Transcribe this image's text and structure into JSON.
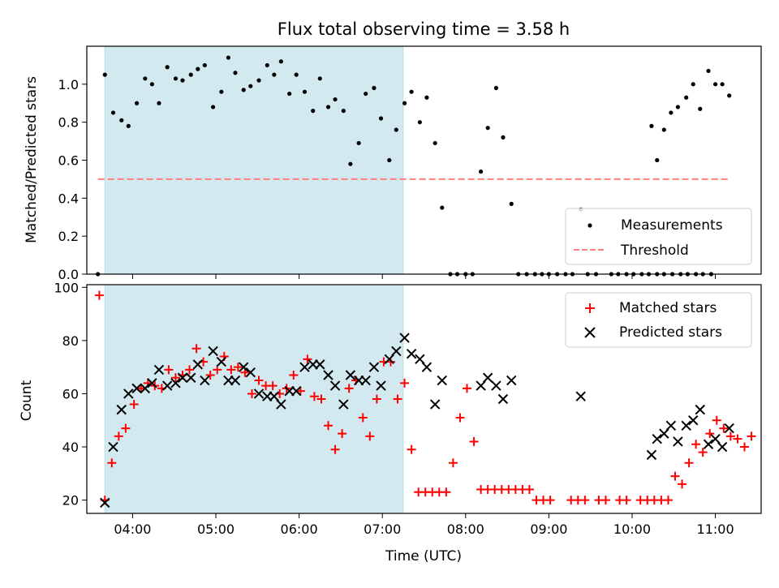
{
  "chart_data": [
    {
      "type": "scatter",
      "title": "Flux total observing time = 3.58 h",
      "xlabel": "",
      "ylabel": "Matched/Predicted stars",
      "xlim": [
        "03:27",
        "11:33"
      ],
      "ylim": [
        0,
        1.2
      ],
      "yticks": [
        "0.0",
        "0.2",
        "0.4",
        "0.6",
        "0.8",
        "1.0"
      ],
      "grid": false,
      "legend": "lower-right",
      "shaded_interval": [
        "03:40",
        "07:15"
      ],
      "series": [
        {
          "name": "Measurements",
          "kind": "scatter",
          "color": "#000000",
          "points": [
            [
              "03:35",
              0.0
            ],
            [
              "03:40",
              1.05
            ],
            [
              "03:46",
              0.85
            ],
            [
              "03:52",
              0.81
            ],
            [
              "03:57",
              0.78
            ],
            [
              "04:03",
              0.9
            ],
            [
              "04:09",
              1.03
            ],
            [
              "04:14",
              1.0
            ],
            [
              "04:19",
              0.9
            ],
            [
              "04:25",
              1.09
            ],
            [
              "04:31",
              1.03
            ],
            [
              "04:36",
              1.02
            ],
            [
              "04:42",
              1.05
            ],
            [
              "04:47",
              1.08
            ],
            [
              "04:52",
              1.1
            ],
            [
              "04:58",
              0.88
            ],
            [
              "05:04",
              0.96
            ],
            [
              "05:09",
              1.14
            ],
            [
              "05:14",
              1.06
            ],
            [
              "05:20",
              0.97
            ],
            [
              "05:25",
              0.99
            ],
            [
              "05:31",
              1.02
            ],
            [
              "05:37",
              1.1
            ],
            [
              "05:42",
              1.05
            ],
            [
              "05:47",
              1.12
            ],
            [
              "05:53",
              0.95
            ],
            [
              "05:58",
              1.05
            ],
            [
              "06:04",
              0.96
            ],
            [
              "06:10",
              0.86
            ],
            [
              "06:15",
              1.03
            ],
            [
              "06:21",
              0.88
            ],
            [
              "06:26",
              0.92
            ],
            [
              "06:32",
              0.86
            ],
            [
              "06:37",
              0.58
            ],
            [
              "06:43",
              0.69
            ],
            [
              "06:48",
              0.95
            ],
            [
              "06:54",
              0.98
            ],
            [
              "06:59",
              0.82
            ],
            [
              "07:05",
              0.6
            ],
            [
              "07:10",
              0.76
            ],
            [
              "07:16",
              0.9
            ],
            [
              "07:21",
              0.96
            ],
            [
              "07:27",
              0.8
            ],
            [
              "07:32",
              0.93
            ],
            [
              "07:38",
              0.69
            ],
            [
              "07:43",
              0.35
            ],
            [
              "07:49",
              0.0
            ],
            [
              "07:54",
              0.0
            ],
            [
              "08:00",
              0.0
            ],
            [
              "08:05",
              0.0
            ],
            [
              "08:11",
              0.54
            ],
            [
              "08:16",
              0.77
            ],
            [
              "08:22",
              0.98
            ],
            [
              "08:27",
              0.72
            ],
            [
              "08:33",
              0.37
            ],
            [
              "08:38",
              0.0
            ],
            [
              "08:44",
              0.0
            ],
            [
              "08:50",
              0.0
            ],
            [
              "08:55",
              0.0
            ],
            [
              "09:00",
              0.0
            ],
            [
              "09:06",
              0.0
            ],
            [
              "09:12",
              0.0
            ],
            [
              "09:17",
              0.0
            ],
            [
              "09:23",
              0.34
            ],
            [
              "09:28",
              0.0
            ],
            [
              "09:34",
              0.0
            ],
            [
              "09:45",
              0.0
            ],
            [
              "09:50",
              0.0
            ],
            [
              "09:56",
              0.0
            ],
            [
              "10:01",
              0.0
            ],
            [
              "10:07",
              0.0
            ],
            [
              "10:12",
              0.0
            ],
            [
              "10:18",
              0.0
            ],
            [
              "10:23",
              0.0
            ],
            [
              "10:29",
              0.0
            ],
            [
              "10:35",
              0.0
            ],
            [
              "10:40",
              0.0
            ],
            [
              "10:46",
              0.0
            ],
            [
              "10:51",
              0.0
            ],
            [
              "10:57",
              0.0
            ],
            [
              "10:14",
              0.78
            ],
            [
              "10:18",
              0.6
            ],
            [
              "10:23",
              0.76
            ],
            [
              "10:28",
              0.85
            ],
            [
              "10:33",
              0.88
            ],
            [
              "10:39",
              0.93
            ],
            [
              "10:44",
              1.0
            ],
            [
              "10:49",
              0.87
            ],
            [
              "10:55",
              1.07
            ],
            [
              "11:00",
              1.0
            ],
            [
              "11:05",
              1.0
            ],
            [
              "11:10",
              0.94
            ]
          ]
        },
        {
          "name": "Threshold",
          "kind": "line",
          "style": "dashed",
          "color": "#ff7f7f",
          "x": [
            "03:35",
            "11:10"
          ],
          "y": [
            0.5,
            0.5
          ]
        }
      ]
    },
    {
      "type": "scatter",
      "title": "",
      "xlabel": "Time (UTC)",
      "ylabel": "Count",
      "xlim": [
        "03:27",
        "11:33"
      ],
      "ylim": [
        15,
        101
      ],
      "yticks": [
        "20",
        "40",
        "60",
        "80",
        "100"
      ],
      "xticks": [
        "04:00",
        "05:00",
        "06:00",
        "07:00",
        "08:00",
        "09:00",
        "10:00",
        "11:00"
      ],
      "grid": false,
      "legend": "top-right",
      "shaded_interval": [
        "03:40",
        "07:15"
      ],
      "series": [
        {
          "name": "Matched stars",
          "kind": "scatter",
          "marker": "+",
          "color": "#ff0000",
          "points": [
            [
              "03:36",
              97
            ],
            [
              "03:40",
              20
            ],
            [
              "03:45",
              34
            ],
            [
              "03:50",
              44
            ],
            [
              "03:55",
              47
            ],
            [
              "04:01",
              56
            ],
            [
              "04:06",
              62
            ],
            [
              "04:11",
              64
            ],
            [
              "04:16",
              63
            ],
            [
              "04:21",
              62
            ],
            [
              "04:26",
              69
            ],
            [
              "04:31",
              66
            ],
            [
              "04:36",
              67
            ],
            [
              "04:41",
              69
            ],
            [
              "04:46",
              77
            ],
            [
              "04:51",
              72
            ],
            [
              "04:56",
              67
            ],
            [
              "05:01",
              69
            ],
            [
              "05:06",
              74
            ],
            [
              "05:11",
              69
            ],
            [
              "05:16",
              70
            ],
            [
              "05:21",
              68
            ],
            [
              "05:26",
              60
            ],
            [
              "05:31",
              65
            ],
            [
              "05:36",
              63
            ],
            [
              "05:41",
              63
            ],
            [
              "05:46",
              60
            ],
            [
              "05:51",
              62
            ],
            [
              "05:56",
              67
            ],
            [
              "06:01",
              61
            ],
            [
              "06:06",
              73
            ],
            [
              "06:11",
              59
            ],
            [
              "06:16",
              58
            ],
            [
              "06:21",
              48
            ],
            [
              "06:26",
              39
            ],
            [
              "06:31",
              45
            ],
            [
              "06:36",
              62
            ],
            [
              "06:41",
              65
            ],
            [
              "06:46",
              51
            ],
            [
              "06:51",
              44
            ],
            [
              "06:56",
              58
            ],
            [
              "07:01",
              72
            ],
            [
              "07:06",
              72
            ],
            [
              "07:11",
              58
            ],
            [
              "07:16",
              64
            ],
            [
              "07:21",
              39
            ],
            [
              "07:26",
              23
            ],
            [
              "07:31",
              23
            ],
            [
              "07:36",
              23
            ],
            [
              "07:41",
              23
            ],
            [
              "07:46",
              23
            ],
            [
              "07:51",
              34
            ],
            [
              "07:56",
              51
            ],
            [
              "08:01",
              62
            ],
            [
              "08:06",
              42
            ],
            [
              "08:11",
              24
            ],
            [
              "08:16",
              24
            ],
            [
              "08:21",
              24
            ],
            [
              "08:26",
              24
            ],
            [
              "08:31",
              24
            ],
            [
              "08:36",
              24
            ],
            [
              "08:41",
              24
            ],
            [
              "08:46",
              24
            ],
            [
              "08:51",
              20
            ],
            [
              "08:56",
              20
            ],
            [
              "09:01",
              20
            ],
            [
              "09:16",
              20
            ],
            [
              "09:21",
              20
            ],
            [
              "09:26",
              20
            ],
            [
              "09:36",
              20
            ],
            [
              "09:41",
              20
            ],
            [
              "09:51",
              20
            ],
            [
              "09:56",
              20
            ],
            [
              "10:06",
              20
            ],
            [
              "10:11",
              20
            ],
            [
              "10:16",
              20
            ],
            [
              "10:21",
              20
            ],
            [
              "10:26",
              20
            ],
            [
              "10:31",
              29
            ],
            [
              "10:36",
              26
            ],
            [
              "10:41",
              34
            ],
            [
              "10:46",
              41
            ],
            [
              "10:51",
              38
            ],
            [
              "10:56",
              45
            ],
            [
              "11:01",
              50
            ],
            [
              "11:06",
              47
            ],
            [
              "11:11",
              44
            ],
            [
              "11:16",
              43
            ],
            [
              "11:21",
              40
            ],
            [
              "11:26",
              44
            ]
          ]
        },
        {
          "name": "Predicted stars",
          "kind": "scatter",
          "marker": "x",
          "color": "#000000",
          "points": [
            [
              "03:40",
              19
            ],
            [
              "03:46",
              40
            ],
            [
              "03:52",
              54
            ],
            [
              "03:57",
              60
            ],
            [
              "04:03",
              62
            ],
            [
              "04:09",
              62
            ],
            [
              "04:14",
              64
            ],
            [
              "04:19",
              69
            ],
            [
              "04:25",
              63
            ],
            [
              "04:31",
              64
            ],
            [
              "04:36",
              66
            ],
            [
              "04:42",
              66
            ],
            [
              "04:47",
              71
            ],
            [
              "04:52",
              65
            ],
            [
              "04:58",
              76
            ],
            [
              "05:04",
              72
            ],
            [
              "05:09",
              65
            ],
            [
              "05:14",
              65
            ],
            [
              "05:20",
              70
            ],
            [
              "05:25",
              68
            ],
            [
              "05:31",
              60
            ],
            [
              "05:37",
              59
            ],
            [
              "05:42",
              59
            ],
            [
              "05:47",
              56
            ],
            [
              "05:53",
              61
            ],
            [
              "05:58",
              61
            ],
            [
              "06:04",
              70
            ],
            [
              "06:10",
              71
            ],
            [
              "06:15",
              71
            ],
            [
              "06:21",
              67
            ],
            [
              "06:26",
              63
            ],
            [
              "06:32",
              56
            ],
            [
              "06:37",
              67
            ],
            [
              "06:43",
              65
            ],
            [
              "06:48",
              65
            ],
            [
              "06:54",
              70
            ],
            [
              "06:59",
              63
            ],
            [
              "07:05",
              73
            ],
            [
              "07:10",
              76
            ],
            [
              "07:16",
              81
            ],
            [
              "07:21",
              75
            ],
            [
              "07:27",
              73
            ],
            [
              "07:32",
              70
            ],
            [
              "07:38",
              56
            ],
            [
              "07:43",
              65
            ],
            [
              "08:11",
              63
            ],
            [
              "08:16",
              66
            ],
            [
              "08:22",
              63
            ],
            [
              "08:27",
              58
            ],
            [
              "08:33",
              65
            ],
            [
              "09:23",
              59
            ],
            [
              "10:14",
              37
            ],
            [
              "10:18",
              43
            ],
            [
              "10:23",
              45
            ],
            [
              "10:28",
              48
            ],
            [
              "10:33",
              42
            ],
            [
              "10:39",
              48
            ],
            [
              "10:44",
              50
            ],
            [
              "10:49",
              54
            ],
            [
              "10:55",
              41
            ],
            [
              "11:00",
              43
            ],
            [
              "11:05",
              40
            ],
            [
              "11:10",
              47
            ]
          ]
        }
      ]
    }
  ],
  "colors": {
    "shade": "#d3e9f0",
    "threshold": "#ff7f7f",
    "matched": "#ff0000",
    "predicted": "#000000"
  }
}
